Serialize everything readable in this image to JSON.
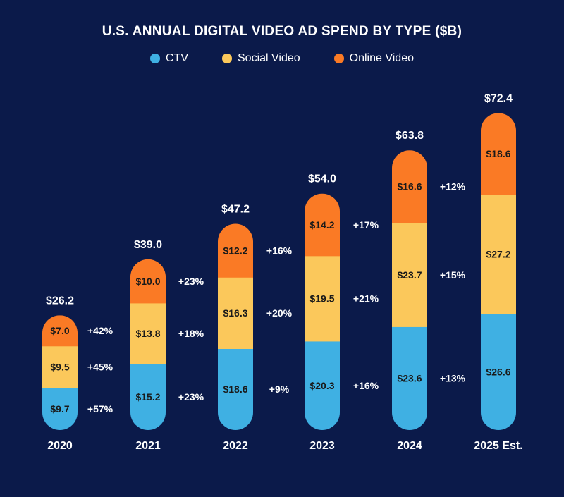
{
  "title": "U.S. ANNUAL DIGITAL VIDEO AD SPEND BY TYPE ($B)",
  "colors": {
    "background": "#0b1a4a",
    "ctv": "#3fb0e3",
    "social": "#fbc85b",
    "online": "#fa7a25"
  },
  "chart_data": {
    "type": "bar",
    "stacked": true,
    "title": "U.S. ANNUAL DIGITAL VIDEO AD SPEND BY TYPE ($B)",
    "categories": [
      "2020",
      "2021",
      "2022",
      "2023",
      "2024",
      "2025 Est."
    ],
    "series": [
      {
        "name": "CTV",
        "color": "#3fb0e3",
        "values": [
          9.7,
          15.2,
          18.6,
          20.3,
          23.6,
          26.6
        ],
        "labels": [
          "$9.7",
          "$15.2",
          "$18.6",
          "$20.3",
          "$23.6",
          "$26.6"
        ],
        "growth": [
          "+57%",
          "+23%",
          "+9%",
          "+16%",
          "+13%",
          ""
        ]
      },
      {
        "name": "Social Video",
        "color": "#fbc85b",
        "values": [
          9.5,
          13.8,
          16.3,
          19.5,
          23.7,
          27.2
        ],
        "labels": [
          "$9.5",
          "$13.8",
          "$16.3",
          "$19.5",
          "$23.7",
          "$27.2"
        ],
        "growth": [
          "+45%",
          "+18%",
          "+20%",
          "+21%",
          "+15%",
          ""
        ]
      },
      {
        "name": "Online Video",
        "color": "#fa7a25",
        "values": [
          7.0,
          10.0,
          12.2,
          14.2,
          16.6,
          18.6
        ],
        "labels": [
          "$7.0",
          "$10.0",
          "$12.2",
          "$14.2",
          "$16.6",
          "$18.6"
        ],
        "growth": [
          "+42%",
          "+23%",
          "+16%",
          "+17%",
          "+12%",
          ""
        ]
      }
    ],
    "totals": [
      26.2,
      39.0,
      47.2,
      54.0,
      63.8,
      72.4
    ],
    "total_labels": [
      "$26.2",
      "$39.0",
      "$47.2",
      "$54.0",
      "$63.8",
      "$72.4"
    ],
    "legend": "top-center",
    "grid": false
  }
}
